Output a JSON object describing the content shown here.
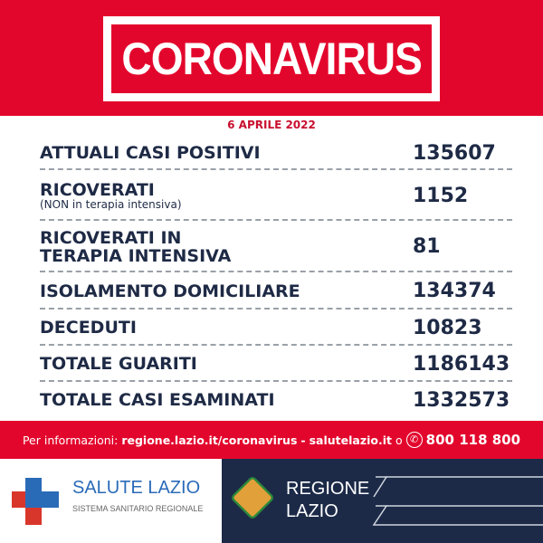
{
  "header": {
    "title": "CORONAVIRUS",
    "date": "6 APRILE 2022"
  },
  "stats": [
    {
      "label": "ATTUALI CASI POSITIVI",
      "value": "135607"
    },
    {
      "label": "RICOVERATI",
      "sublabel": "(NON in terapia intensiva)",
      "value": "1152"
    },
    {
      "label": "RICOVERATI IN TERAPIA INTENSIVA",
      "value": "81"
    },
    {
      "label": "ISOLAMENTO DOMICILIARE",
      "value": "134374"
    },
    {
      "label": "DECEDUTI",
      "value": "10823"
    },
    {
      "label": "TOTALE GUARITI",
      "value": "1186143"
    },
    {
      "label": "TOTALE CASI ESAMINATI",
      "value": "1332573"
    }
  ],
  "footer": {
    "prefix": "Per informazioni:",
    "link1": "regione.lazio.it/coronavirus",
    "sep": "-",
    "link2": "salutelazio.it",
    "or": "o",
    "phone": "800 118 800",
    "phone_icon": "phone-icon"
  },
  "logos": {
    "salute_name": "SALUTE LAZIO",
    "salute_sub": "SISTEMA SANITARIO REGIONALE",
    "regione_line1": "REGIONE",
    "regione_line2": "LAZIO"
  },
  "colors": {
    "red": "#e3062c",
    "navy": "#1c2a48",
    "blue": "#2a6bb8"
  }
}
